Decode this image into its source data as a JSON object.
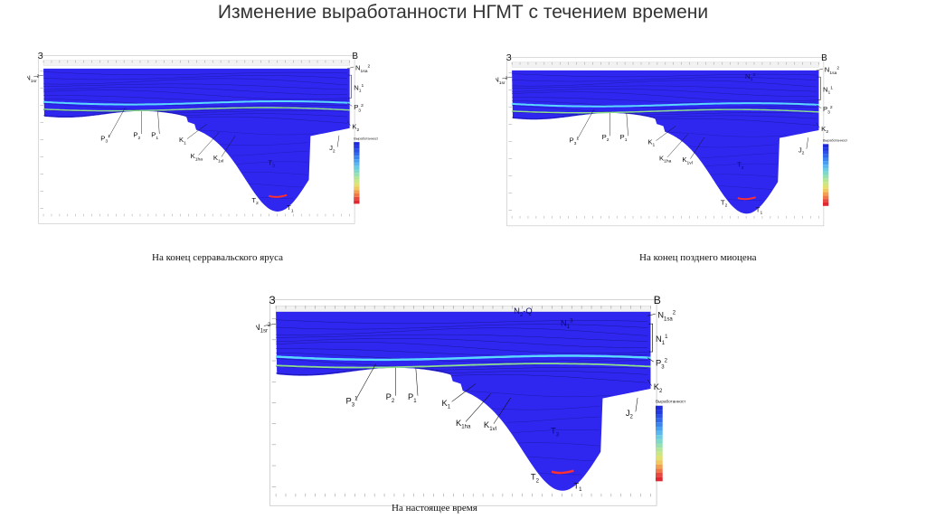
{
  "title": "Изменение выработанности НГМТ с течением времени",
  "captions": [
    "На конец серравальского яруса",
    "На конец позднего миоцена",
    "На настоящее время"
  ],
  "direction": {
    "west": "З",
    "east": "В"
  },
  "legend": {
    "title": "Выработанность НГМТ (%)",
    "colors": [
      "#1c2ad8",
      "#2238e0",
      "#2a50e6",
      "#3068ea",
      "#3a84ee",
      "#48a0f0",
      "#5ab8ee",
      "#6ccce0",
      "#80d8c8",
      "#98e0b0",
      "#b4e498",
      "#cce684",
      "#e2e070",
      "#f0c860",
      "#f2a050",
      "#f07848",
      "#e84840",
      "#e02830"
    ]
  },
  "colors": {
    "section_fill": "#2f27f0",
    "top_fill": "#2a26e2",
    "cyan_horizon": "#5ad8ff",
    "green_horizon": "#8ee08a",
    "red_base": "#ff3030"
  },
  "panels": [
    {
      "labels": [
        {
          "id": "N1sr2",
          "text": "N",
          "sub": "1sr",
          "sup": "2"
        },
        {
          "id": "N1sa2",
          "text": "N",
          "sub": "1sa",
          "sup": "2"
        },
        {
          "id": "N11",
          "text": "N",
          "sub": "1",
          "sup": "1"
        },
        {
          "id": "P32r",
          "text": "P",
          "sub": "3",
          "sup": "2"
        },
        {
          "id": "K2",
          "text": "K",
          "sub": "2",
          "sup": ""
        },
        {
          "id": "J2",
          "text": "J",
          "sub": "2",
          "sup": ""
        },
        {
          "id": "P31",
          "text": "P",
          "sub": "3",
          "sup": "1"
        },
        {
          "id": "P2",
          "text": "P",
          "sub": "2",
          "sup": ""
        },
        {
          "id": "P1",
          "text": "P",
          "sub": "1",
          "sup": ""
        },
        {
          "id": "K1",
          "text": "K",
          "sub": "1",
          "sup": ""
        },
        {
          "id": "K1ha",
          "text": "K",
          "sub": "1ha",
          "sup": ""
        },
        {
          "id": "K1vl",
          "text": "K",
          "sub": "1vl",
          "sup": ""
        },
        {
          "id": "T3",
          "text": "T",
          "sub": "3",
          "sup": ""
        },
        {
          "id": "T2",
          "text": "T",
          "sub": "2",
          "sup": ""
        },
        {
          "id": "T1",
          "text": "T",
          "sub": "1",
          "sup": ""
        }
      ]
    },
    {
      "labels": [
        {
          "id": "N1sr2",
          "text": "N",
          "sub": "1sr",
          "sup": "2"
        },
        {
          "id": "N13",
          "text": "N",
          "sub": "1",
          "sup": "3"
        },
        {
          "id": "N1sa2",
          "text": "N",
          "sub": "1sa",
          "sup": "2"
        },
        {
          "id": "N11",
          "text": "N",
          "sub": "1",
          "sup": "1"
        },
        {
          "id": "P32r",
          "text": "P",
          "sub": "3",
          "sup": "2"
        },
        {
          "id": "K2",
          "text": "K",
          "sub": "2",
          "sup": ""
        },
        {
          "id": "J2",
          "text": "J",
          "sub": "2",
          "sup": ""
        },
        {
          "id": "P31",
          "text": "P",
          "sub": "3",
          "sup": "1"
        },
        {
          "id": "P2",
          "text": "P",
          "sub": "2",
          "sup": ""
        },
        {
          "id": "P1",
          "text": "P",
          "sub": "1",
          "sup": ""
        },
        {
          "id": "K1",
          "text": "K",
          "sub": "1",
          "sup": ""
        },
        {
          "id": "K1ha",
          "text": "K",
          "sub": "1ha",
          "sup": ""
        },
        {
          "id": "K1vl",
          "text": "K",
          "sub": "1vl",
          "sup": ""
        },
        {
          "id": "T3",
          "text": "T",
          "sub": "3",
          "sup": ""
        },
        {
          "id": "T2",
          "text": "T",
          "sub": "2",
          "sup": ""
        },
        {
          "id": "T1",
          "text": "T",
          "sub": "1",
          "sup": ""
        }
      ]
    },
    {
      "labels": [
        {
          "id": "N1sr2",
          "text": "N",
          "sub": "1sr",
          "sup": "2"
        },
        {
          "id": "N2Q",
          "text": "N",
          "sub": "2",
          "sup": "",
          "tail": "-Q"
        },
        {
          "id": "N13",
          "text": "N",
          "sub": "1",
          "sup": "3"
        },
        {
          "id": "N1sa2",
          "text": "N",
          "sub": "1sa",
          "sup": "2"
        },
        {
          "id": "N11",
          "text": "N",
          "sub": "1",
          "sup": "1"
        },
        {
          "id": "P32r",
          "text": "P",
          "sub": "3",
          "sup": "2"
        },
        {
          "id": "K2",
          "text": "K",
          "sub": "2",
          "sup": ""
        },
        {
          "id": "J2",
          "text": "J",
          "sub": "2",
          "sup": ""
        },
        {
          "id": "P31",
          "text": "P",
          "sub": "3",
          "sup": "1"
        },
        {
          "id": "P2",
          "text": "P",
          "sub": "2",
          "sup": ""
        },
        {
          "id": "P1",
          "text": "P",
          "sub": "1",
          "sup": ""
        },
        {
          "id": "K1",
          "text": "K",
          "sub": "1",
          "sup": ""
        },
        {
          "id": "K1ha",
          "text": "K",
          "sub": "1ha",
          "sup": ""
        },
        {
          "id": "K1vl",
          "text": "K",
          "sub": "1vl",
          "sup": ""
        },
        {
          "id": "T3",
          "text": "T",
          "sub": "3",
          "sup": ""
        },
        {
          "id": "T2",
          "text": "T",
          "sub": "2",
          "sup": ""
        },
        {
          "id": "T1",
          "text": "T",
          "sub": "1",
          "sup": ""
        }
      ]
    }
  ]
}
